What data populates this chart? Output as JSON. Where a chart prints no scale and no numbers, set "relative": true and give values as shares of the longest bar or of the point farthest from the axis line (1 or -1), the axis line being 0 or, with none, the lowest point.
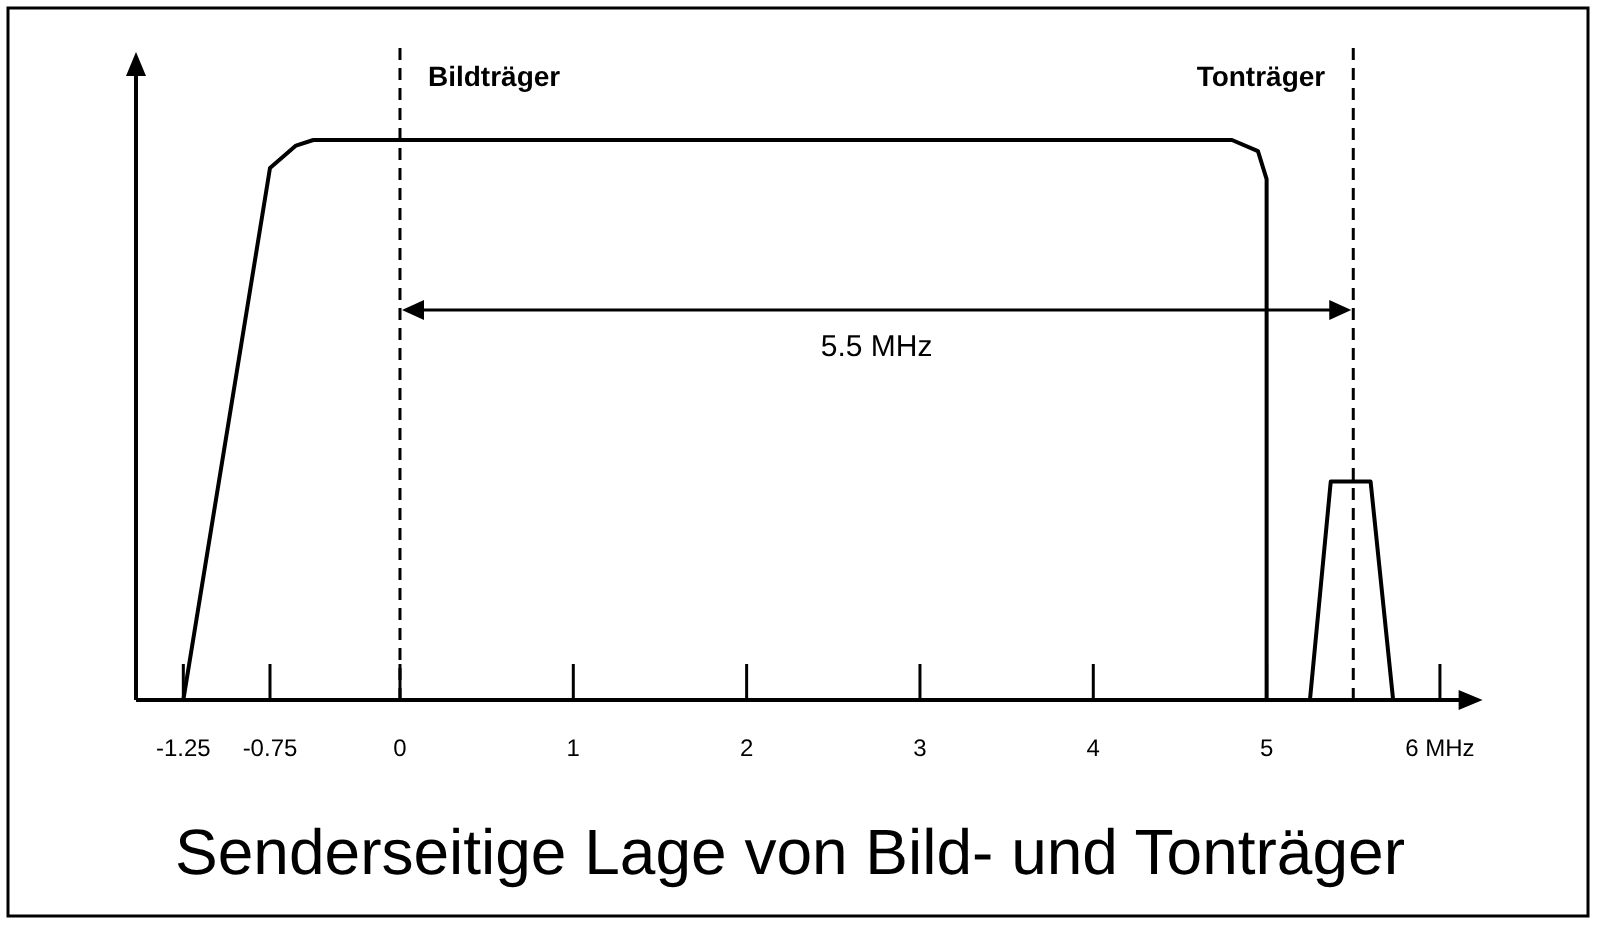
{
  "chart_data": {
    "type": "line",
    "title": "Senderseitige Lage von Bild- und Tonträger",
    "relative": true,
    "xlim": [
      -1.5,
      6.2
    ],
    "xticks": [
      -1.25,
      -0.75,
      0,
      1,
      2,
      3,
      4,
      5,
      {
        "value": 6,
        "label": "6 MHz"
      }
    ],
    "tick_labels": "x",
    "marker": "none",
    "line_style": "solid",
    "series": [
      {
        "color": "#000000",
        "x": [
          -1.25,
          -0.75,
          -0.6,
          -0.5,
          4.8,
          4.95,
          5,
          5
        ],
        "values": [
          0,
          0.95,
          0.99,
          1,
          1,
          0.98,
          0.93,
          0
        ]
      },
      {
        "color": "#000000",
        "x": [
          5.25,
          5.37,
          5.6,
          5.73
        ],
        "values": [
          0,
          0.39,
          0.39,
          0
        ]
      }
    ],
    "ref_lines": [
      {
        "axis": "x",
        "value": 0,
        "label": "Bildträger",
        "line_style": "dashed",
        "color": "#000000"
      },
      {
        "axis": "x",
        "value": 5.5,
        "label": "Tonträger",
        "line_style": "dashed",
        "color": "#000000"
      }
    ],
    "annotations": [
      "5.5 MHz"
    ]
  }
}
